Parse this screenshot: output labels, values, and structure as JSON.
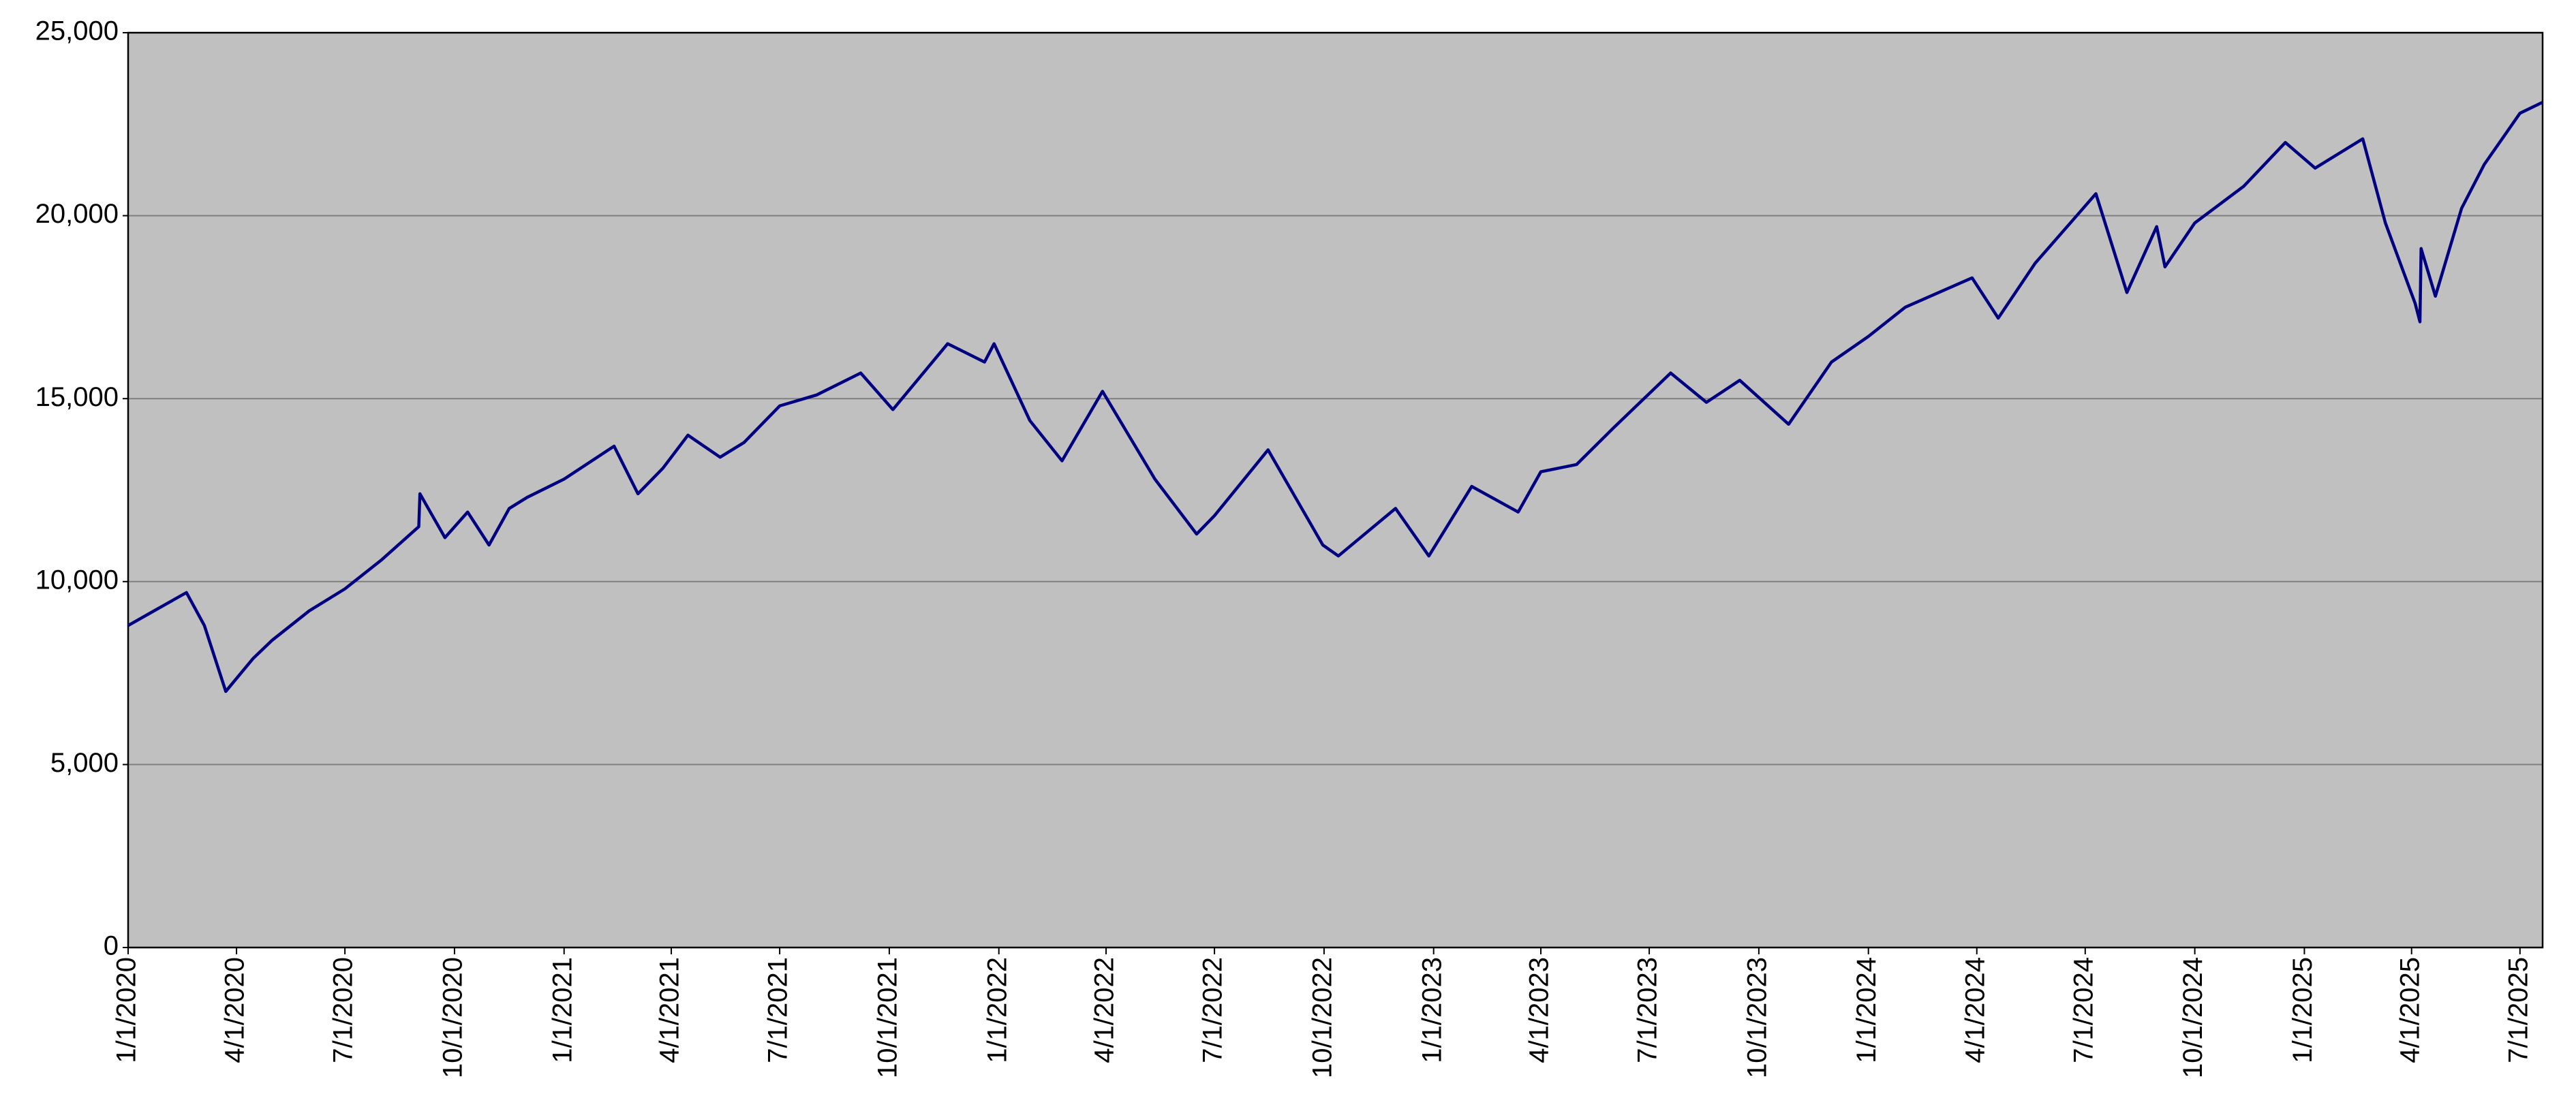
{
  "chart_data": {
    "type": "line",
    "x": [
      "2020-01-01",
      "2020-01-20",
      "2020-02-19",
      "2020-03-05",
      "2020-03-23",
      "2020-04-15",
      "2020-05-01",
      "2020-06-01",
      "2020-07-01",
      "2020-08-01",
      "2020-09-01",
      "2020-09-02",
      "2020-09-23",
      "2020-10-12",
      "2020-10-30",
      "2020-11-16",
      "2020-12-01",
      "2021-01-01",
      "2021-02-12",
      "2021-03-04",
      "2021-03-25",
      "2021-04-15",
      "2021-05-12",
      "2021-06-01",
      "2021-07-01",
      "2021-08-01",
      "2021-09-07",
      "2021-10-04",
      "2021-11-19",
      "2021-12-20",
      "2021-12-28",
      "2022-01-27",
      "2022-02-23",
      "2022-03-29",
      "2022-05-12",
      "2022-06-16",
      "2022-07-01",
      "2022-08-15",
      "2022-09-30",
      "2022-10-13",
      "2022-11-30",
      "2022-12-28",
      "2023-02-02",
      "2023-03-13",
      "2023-04-01",
      "2023-05-01",
      "2023-06-01",
      "2023-07-19",
      "2023-08-18",
      "2023-09-15",
      "2023-10-26",
      "2023-12-01",
      "2024-01-01",
      "2024-02-01",
      "2024-03-28",
      "2024-04-19",
      "2024-05-20",
      "2024-07-10",
      "2024-08-05",
      "2024-08-30",
      "2024-09-06",
      "2024-10-01",
      "2024-11-11",
      "2024-12-16",
      "2025-01-10",
      "2025-02-19",
      "2025-03-10",
      "2025-04-04",
      "2025-04-08",
      "2025-04-09",
      "2025-04-21",
      "2025-05-13",
      "2025-06-01",
      "2025-07-01",
      "2025-07-20"
    ],
    "values": [
      8800,
      9150,
      9700,
      8800,
      7000,
      7900,
      8400,
      9200,
      9800,
      10600,
      11500,
      12400,
      11200,
      11900,
      11000,
      12000,
      12300,
      12800,
      13700,
      12400,
      13100,
      14000,
      13400,
      13800,
      14800,
      15100,
      15700,
      14700,
      16500,
      16000,
      16500,
      14400,
      13300,
      15200,
      12800,
      11300,
      11800,
      13600,
      11000,
      10700,
      12000,
      10700,
      12600,
      11900,
      13000,
      13200,
      14200,
      15700,
      14900,
      15500,
      14300,
      16000,
      16700,
      17500,
      18300,
      17200,
      18700,
      20600,
      17900,
      19700,
      18600,
      19800,
      20800,
      22000,
      21300,
      22100,
      19800,
      17600,
      17100,
      19100,
      17800,
      20200,
      21400,
      22800,
      23100
    ],
    "color": "#000080",
    "xlim": [
      "2020-01-01",
      "2025-07-20"
    ],
    "xticks": [
      {
        "value": "2020-01-01",
        "label": "1/1/2020"
      },
      {
        "value": "2020-04-01",
        "label": "4/1/2020"
      },
      {
        "value": "2020-07-01",
        "label": "7/1/2020"
      },
      {
        "value": "2020-10-01",
        "label": "10/1/2020"
      },
      {
        "value": "2021-01-01",
        "label": "1/1/2021"
      },
      {
        "value": "2021-04-01",
        "label": "4/1/2021"
      },
      {
        "value": "2021-07-01",
        "label": "7/1/2021"
      },
      {
        "value": "2021-10-01",
        "label": "10/1/2021"
      },
      {
        "value": "2022-01-01",
        "label": "1/1/2022"
      },
      {
        "value": "2022-04-01",
        "label": "4/1/2022"
      },
      {
        "value": "2022-07-01",
        "label": "7/1/2022"
      },
      {
        "value": "2022-10-01",
        "label": "10/1/2022"
      },
      {
        "value": "2023-01-01",
        "label": "1/1/2023"
      },
      {
        "value": "2023-04-01",
        "label": "4/1/2023"
      },
      {
        "value": "2023-07-01",
        "label": "7/1/2023"
      },
      {
        "value": "2023-10-01",
        "label": "10/1/2023"
      },
      {
        "value": "2024-01-01",
        "label": "1/1/2024"
      },
      {
        "value": "2024-04-01",
        "label": "4/1/2024"
      },
      {
        "value": "2024-07-01",
        "label": "7/1/2024"
      },
      {
        "value": "2024-10-01",
        "label": "10/1/2024"
      },
      {
        "value": "2025-01-01",
        "label": "1/1/2025"
      },
      {
        "value": "2025-04-01",
        "label": "4/1/2025"
      },
      {
        "value": "2025-07-01",
        "label": "7/1/2025"
      }
    ],
    "ylim": [
      0,
      25000
    ],
    "yticks": [
      0,
      {
        "value": 5000,
        "label": "5,000"
      },
      {
        "value": 10000,
        "label": "10,000"
      },
      {
        "value": 15000,
        "label": "15,000"
      },
      {
        "value": 20000,
        "label": "20,000"
      },
      {
        "value": 25000,
        "label": "25,000"
      }
    ],
    "grid": true
  }
}
